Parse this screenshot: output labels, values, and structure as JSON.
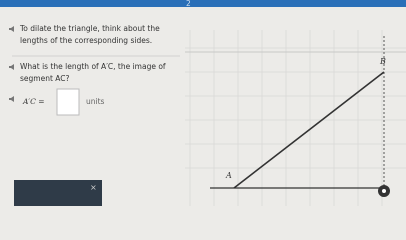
{
  "top_bar": {
    "text": "2"
  },
  "hint": {
    "text": "To dilate the triangle, think about the lengths of the corresponding sides."
  },
  "question": {
    "text": "What is the length of A′C, the image of segment AC?"
  },
  "answer": {
    "label": "A′C =",
    "unit": "units"
  },
  "graph": {
    "points": [
      "B",
      "A"
    ]
  }
}
